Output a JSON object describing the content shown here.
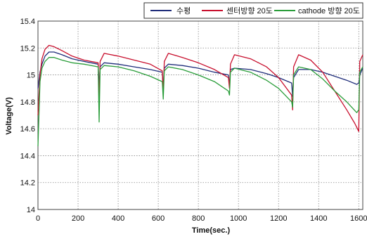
{
  "chart_data": {
    "type": "line",
    "title": "",
    "xlabel": "Time(sec.)",
    "ylabel": "Voltage(V)",
    "xlim": [
      0,
      1620
    ],
    "ylim": [
      14.0,
      15.4
    ],
    "x_ticks": [
      0,
      200,
      400,
      600,
      800,
      1000,
      1200,
      1400,
      1600
    ],
    "y_ticks": [
      14,
      14.2,
      14.4,
      14.6,
      14.8,
      15,
      15.2,
      15.4
    ],
    "x_tick_labels": [
      "0",
      "200",
      "400",
      "600",
      "800",
      "1000",
      "1200",
      "1400",
      "1600"
    ],
    "y_tick_labels": [
      "14",
      "14.2",
      "14.4",
      "14.6",
      "14.8",
      "15",
      "15.2",
      "15.4"
    ],
    "grid": true,
    "legend_position": "top-right",
    "series": [
      {
        "name": "수평",
        "color": "#1f2d7a",
        "points": [
          [
            0,
            14.9
          ],
          [
            10,
            15.02
          ],
          [
            20,
            15.08
          ],
          [
            35,
            15.14
          ],
          [
            55,
            15.17
          ],
          [
            80,
            15.17
          ],
          [
            120,
            15.15
          ],
          [
            170,
            15.12
          ],
          [
            230,
            15.1
          ],
          [
            300,
            15.08
          ],
          [
            305,
            14.9
          ],
          [
            310,
            15.06
          ],
          [
            330,
            15.09
          ],
          [
            400,
            15.08
          ],
          [
            480,
            15.06
          ],
          [
            560,
            15.04
          ],
          [
            620,
            15.02
          ],
          [
            625,
            14.9
          ],
          [
            630,
            15.05
          ],
          [
            650,
            15.08
          ],
          [
            720,
            15.07
          ],
          [
            800,
            15.05
          ],
          [
            880,
            15.02
          ],
          [
            950,
            15.0
          ],
          [
            955,
            14.92
          ],
          [
            960,
            15.04
          ],
          [
            980,
            15.05
          ],
          [
            1060,
            15.04
          ],
          [
            1140,
            15.01
          ],
          [
            1200,
            14.98
          ],
          [
            1265,
            14.94
          ],
          [
            1270,
            14.84
          ],
          [
            1275,
            14.98
          ],
          [
            1300,
            15.04
          ],
          [
            1360,
            15.04
          ],
          [
            1420,
            15.02
          ],
          [
            1480,
            14.99
          ],
          [
            1540,
            14.96
          ],
          [
            1590,
            14.93
          ],
          [
            1600,
            14.94
          ],
          [
            1605,
            15.0
          ],
          [
            1620,
            15.05
          ]
        ]
      },
      {
        "name": "센터방향 20도",
        "color": "#c8102e",
        "points": [
          [
            0,
            14.7
          ],
          [
            10,
            15.0
          ],
          [
            20,
            15.12
          ],
          [
            35,
            15.19
          ],
          [
            55,
            15.22
          ],
          [
            80,
            15.21
          ],
          [
            120,
            15.18
          ],
          [
            170,
            15.14
          ],
          [
            230,
            15.11
          ],
          [
            300,
            15.09
          ],
          [
            305,
            14.78
          ],
          [
            310,
            15.1
          ],
          [
            330,
            15.16
          ],
          [
            400,
            15.14
          ],
          [
            480,
            15.11
          ],
          [
            560,
            15.08
          ],
          [
            620,
            15.03
          ],
          [
            625,
            14.86
          ],
          [
            630,
            15.1
          ],
          [
            650,
            15.16
          ],
          [
            720,
            15.13
          ],
          [
            800,
            15.09
          ],
          [
            880,
            15.04
          ],
          [
            950,
            14.98
          ],
          [
            955,
            14.9
          ],
          [
            960,
            15.08
          ],
          [
            980,
            15.15
          ],
          [
            1060,
            15.12
          ],
          [
            1140,
            15.06
          ],
          [
            1200,
            14.98
          ],
          [
            1265,
            14.85
          ],
          [
            1270,
            14.74
          ],
          [
            1275,
            15.06
          ],
          [
            1300,
            15.15
          ],
          [
            1360,
            15.11
          ],
          [
            1420,
            15.02
          ],
          [
            1480,
            14.88
          ],
          [
            1540,
            14.74
          ],
          [
            1580,
            14.64
          ],
          [
            1600,
            14.58
          ],
          [
            1605,
            15.1
          ],
          [
            1620,
            15.15
          ]
        ]
      },
      {
        "name": "cathode 방향 20도",
        "color": "#2a9d3a",
        "points": [
          [
            0,
            14.47
          ],
          [
            10,
            14.95
          ],
          [
            20,
            15.05
          ],
          [
            35,
            15.1
          ],
          [
            55,
            15.13
          ],
          [
            80,
            15.13
          ],
          [
            120,
            15.11
          ],
          [
            170,
            15.09
          ],
          [
            230,
            15.08
          ],
          [
            300,
            15.06
          ],
          [
            305,
            14.65
          ],
          [
            310,
            15.04
          ],
          [
            330,
            15.07
          ],
          [
            400,
            15.06
          ],
          [
            480,
            15.03
          ],
          [
            560,
            14.99
          ],
          [
            620,
            14.95
          ],
          [
            625,
            14.82
          ],
          [
            630,
            15.03
          ],
          [
            650,
            15.06
          ],
          [
            720,
            15.04
          ],
          [
            800,
            15.0
          ],
          [
            880,
            14.95
          ],
          [
            950,
            14.88
          ],
          [
            955,
            14.85
          ],
          [
            960,
            15.02
          ],
          [
            980,
            15.05
          ],
          [
            1060,
            15.02
          ],
          [
            1140,
            14.96
          ],
          [
            1200,
            14.9
          ],
          [
            1265,
            14.8
          ],
          [
            1270,
            14.76
          ],
          [
            1275,
            15.0
          ],
          [
            1300,
            15.06
          ],
          [
            1360,
            15.04
          ],
          [
            1420,
            14.97
          ],
          [
            1480,
            14.88
          ],
          [
            1540,
            14.8
          ],
          [
            1590,
            14.72
          ],
          [
            1600,
            14.74
          ],
          [
            1605,
            15.02
          ],
          [
            1620,
            15.06
          ]
        ]
      }
    ]
  }
}
